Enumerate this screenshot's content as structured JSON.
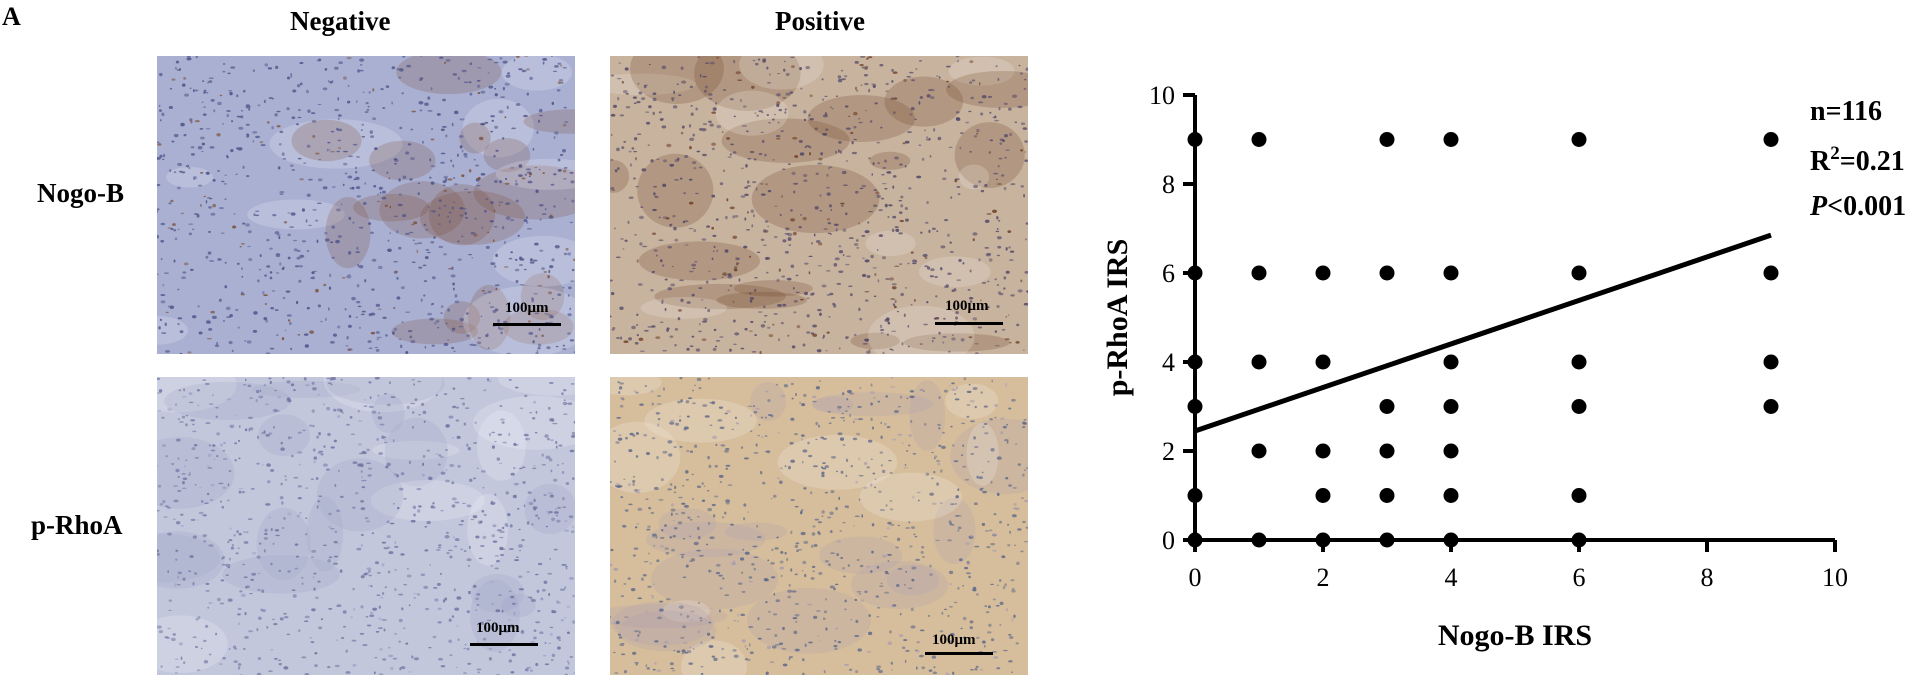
{
  "panel_label": "A",
  "micrographs": {
    "columns": [
      "Negative",
      "Positive"
    ],
    "rows": [
      "Nogo-B",
      "p-RhoA"
    ],
    "scale_bar_label": "100μm",
    "panels": [
      {
        "row": "Nogo-B",
        "column": "Negative",
        "base": "#aab0d2",
        "speck": "#4a4f86",
        "accent": "#7a4a30"
      },
      {
        "row": "Nogo-B",
        "column": "Positive",
        "base": "#c7b39e",
        "speck": "#4e4466",
        "accent": "#6a3a20"
      },
      {
        "row": "p-RhoA",
        "column": "Negative",
        "base": "#c2c7dc",
        "speck": "#6a709e",
        "accent": "#9aa0c4"
      },
      {
        "row": "p-RhoA",
        "column": "Positive",
        "base": "#d6be9c",
        "speck": "#5a6688",
        "accent": "#a89ab0"
      }
    ]
  },
  "chart_data": {
    "type": "scatter",
    "xlabel": "Nogo-B IRS",
    "ylabel": "p-RhoA IRS",
    "xlim": [
      0,
      10
    ],
    "ylim": [
      0,
      10
    ],
    "xticks": [
      0,
      2,
      4,
      6,
      8,
      10
    ],
    "yticks": [
      0,
      2,
      4,
      6,
      8,
      10
    ],
    "grid": false,
    "stats": {
      "n": "n=116",
      "r2": "R2=0.21",
      "p": "P<0.001"
    },
    "points": [
      [
        0,
        0
      ],
      [
        0,
        1
      ],
      [
        0,
        3
      ],
      [
        0,
        4
      ],
      [
        0,
        6
      ],
      [
        0,
        9
      ],
      [
        1,
        0
      ],
      [
        1,
        2
      ],
      [
        1,
        4
      ],
      [
        1,
        6
      ],
      [
        1,
        9
      ],
      [
        2,
        0
      ],
      [
        2,
        1
      ],
      [
        2,
        2
      ],
      [
        2,
        4
      ],
      [
        2,
        6
      ],
      [
        3,
        0
      ],
      [
        3,
        1
      ],
      [
        3,
        2
      ],
      [
        3,
        3
      ],
      [
        3,
        6
      ],
      [
        3,
        9
      ],
      [
        4,
        0
      ],
      [
        4,
        1
      ],
      [
        4,
        2
      ],
      [
        4,
        3
      ],
      [
        4,
        4
      ],
      [
        4,
        6
      ],
      [
        4,
        9
      ],
      [
        6,
        0
      ],
      [
        6,
        1
      ],
      [
        6,
        3
      ],
      [
        6,
        4
      ],
      [
        6,
        6
      ],
      [
        6,
        9
      ],
      [
        9,
        3
      ],
      [
        9,
        4
      ],
      [
        9,
        6
      ],
      [
        9,
        9
      ]
    ],
    "regression": {
      "x": [
        0,
        9
      ],
      "y": [
        2.45,
        6.85
      ]
    },
    "colors": {
      "points": "#000000",
      "line": "#000000"
    }
  }
}
